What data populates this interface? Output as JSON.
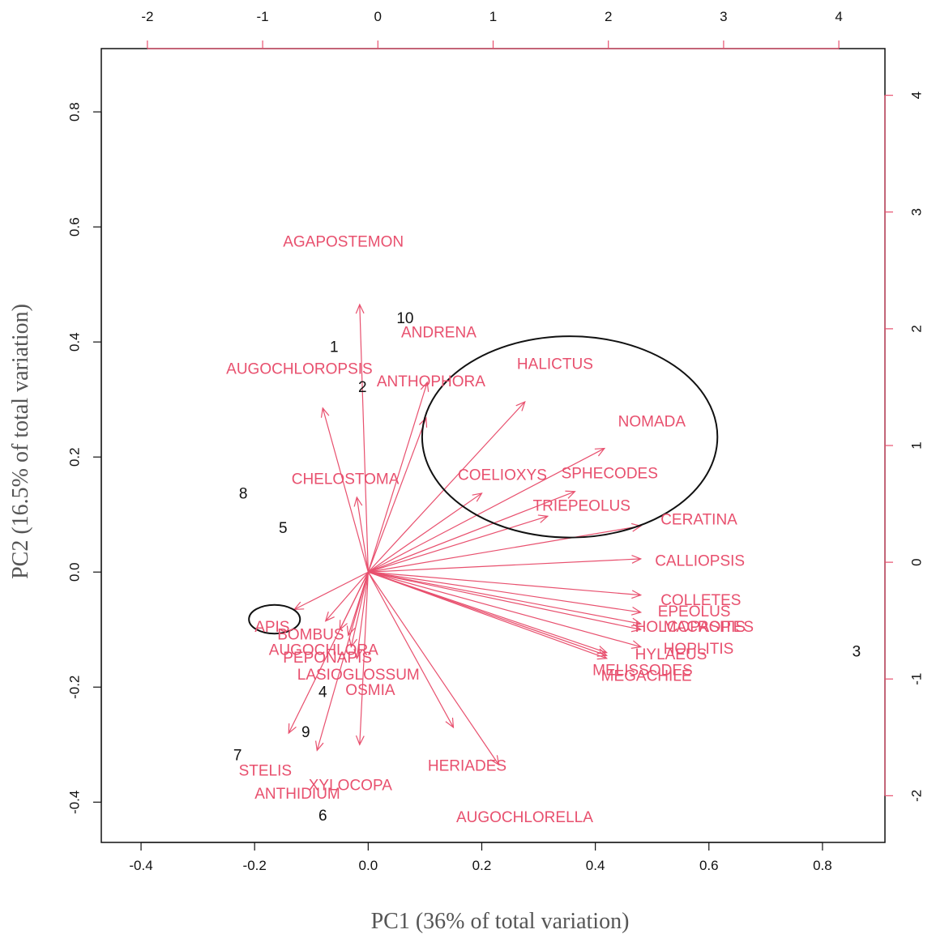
{
  "chart_data": {
    "type": "scatter",
    "title": "",
    "xlabel": "PC1 (36% of total variation)",
    "ylabel": "PC2 (16.5% of total variation)",
    "xlim": [
      -0.47,
      0.91
    ],
    "ylim": [
      -0.47,
      0.91
    ],
    "top_xlim": [
      -2.4,
      4.4
    ],
    "right_ylim": [
      -2.4,
      4.4
    ],
    "bottom_ticks": [
      "-0.4",
      "-0.2",
      "0.0",
      "0.2",
      "0.4",
      "0.6",
      "0.8"
    ],
    "left_ticks": [
      "-0.4",
      "-0.2",
      "0.0",
      "0.2",
      "0.4",
      "0.6",
      "0.8"
    ],
    "top_ticks": [
      "-2",
      "-1",
      "0",
      "1",
      "2",
      "3",
      "4"
    ],
    "right_ticks": [
      "-2",
      "-1",
      "0",
      "1",
      "2",
      "3",
      "4"
    ],
    "colors": {
      "variables": "#e8506e",
      "observations": "#111111",
      "frame": "#111111"
    },
    "observations": [
      {
        "label": "1",
        "x": -0.06,
        "y": 0.39
      },
      {
        "label": "2",
        "x": -0.01,
        "y": 0.32
      },
      {
        "label": "3",
        "x": 0.86,
        "y": -0.14
      },
      {
        "label": "4",
        "x": -0.08,
        "y": -0.21
      },
      {
        "label": "5",
        "x": -0.15,
        "y": 0.075
      },
      {
        "label": "6",
        "x": -0.08,
        "y": -0.425
      },
      {
        "label": "7",
        "x": -0.23,
        "y": -0.32
      },
      {
        "label": "8",
        "x": -0.22,
        "y": 0.135
      },
      {
        "label": "9",
        "x": -0.11,
        "y": -0.28
      },
      {
        "label": "10",
        "x": 0.065,
        "y": 0.44
      }
    ],
    "loadings": [
      {
        "name": "AGAPOSTEMON",
        "x": -0.015,
        "y": 0.465,
        "lx": -0.15,
        "ly": 0.573
      },
      {
        "name": "ANDRENA",
        "x": 0.104,
        "y": 0.33,
        "lx": 0.058,
        "ly": 0.415
      },
      {
        "name": "AUGOCHLOROPSIS",
        "x": -0.08,
        "y": 0.285,
        "lx": -0.25,
        "ly": 0.352
      },
      {
        "name": "ANTHOPHORA",
        "x": 0.102,
        "y": 0.268,
        "lx": 0.015,
        "ly": 0.33
      },
      {
        "name": "HALICTUS",
        "x": 0.276,
        "y": 0.296,
        "lx": 0.262,
        "ly": 0.36
      },
      {
        "name": "NOMADA",
        "x": 0.416,
        "y": 0.215,
        "lx": 0.44,
        "ly": 0.26
      },
      {
        "name": "COELIOXYS",
        "x": 0.2,
        "y": 0.137,
        "lx": 0.158,
        "ly": 0.167
      },
      {
        "name": "SPHECODES",
        "x": 0.364,
        "y": 0.14,
        "lx": 0.34,
        "ly": 0.17
      },
      {
        "name": "CHELOSTOMA",
        "x": -0.02,
        "y": 0.13,
        "lx": -0.135,
        "ly": 0.16
      },
      {
        "name": "TRIEPEOLUS",
        "x": 0.316,
        "y": 0.097,
        "lx": 0.29,
        "ly": 0.114
      },
      {
        "name": "CERATINA",
        "x": 0.48,
        "y": 0.08,
        "lx": 0.515,
        "ly": 0.09
      },
      {
        "name": "CALLIOPSIS",
        "x": 0.48,
        "y": 0.023,
        "lx": 0.505,
        "ly": 0.018
      },
      {
        "name": "COLLETES",
        "x": 0.48,
        "y": -0.04,
        "lx": 0.515,
        "ly": -0.05
      },
      {
        "name": "EPEOLUS",
        "x": 0.48,
        "y": -0.07,
        "lx": 0.51,
        "ly": -0.07
      },
      {
        "name": "HOLCOPASITES",
        "x": 0.48,
        "y": -0.09,
        "lx": 0.47,
        "ly": -0.097
      },
      {
        "name": "MACROPIS",
        "x": 0.48,
        "y": -0.1,
        "lx": 0.52,
        "ly": -0.097
      },
      {
        "name": "HOPLITIS",
        "x": 0.48,
        "y": -0.13,
        "lx": 0.52,
        "ly": -0.135
      },
      {
        "name": "HYLAEUS",
        "x": 0.42,
        "y": -0.14,
        "lx": 0.47,
        "ly": -0.145
      },
      {
        "name": "MELISSODES",
        "x": 0.42,
        "y": -0.145,
        "lx": 0.395,
        "ly": -0.172
      },
      {
        "name": "MEGACHILE",
        "x": 0.42,
        "y": -0.15,
        "lx": 0.41,
        "ly": -0.182
      },
      {
        "name": "APIS",
        "x": -0.13,
        "y": -0.065,
        "lx": -0.2,
        "ly": -0.097
      },
      {
        "name": "BOMBUS",
        "x": -0.075,
        "y": -0.085,
        "lx": -0.16,
        "ly": -0.11
      },
      {
        "name": "AUGOCHLORA",
        "x": -0.05,
        "y": -0.1,
        "lx": -0.175,
        "ly": -0.137
      },
      {
        "name": "PEPONAPIS",
        "x": -0.035,
        "y": -0.11,
        "lx": -0.15,
        "ly": -0.15
      },
      {
        "name": "LASIOGLOSSUM",
        "x": -0.03,
        "y": -0.13,
        "lx": -0.125,
        "ly": -0.18
      },
      {
        "name": "OSMIA",
        "x": -0.02,
        "y": -0.15,
        "lx": -0.04,
        "ly": -0.207
      },
      {
        "name": "HERIADES",
        "x": 0.15,
        "y": -0.27,
        "lx": 0.105,
        "ly": -0.338
      },
      {
        "name": "XYLOCOPA",
        "x": -0.09,
        "y": -0.31,
        "lx": -0.105,
        "ly": -0.372
      },
      {
        "name": "STELIS",
        "x": -0.14,
        "y": -0.28,
        "lx": -0.228,
        "ly": -0.347
      },
      {
        "name": "ANTHIDIUM",
        "x": -0.015,
        "y": -0.3,
        "lx": -0.2,
        "ly": -0.387
      },
      {
        "name": "AUGOCHLORELLA",
        "x": 0.23,
        "y": -0.335,
        "lx": 0.155,
        "ly": -0.428
      }
    ],
    "annotations": [
      {
        "type": "ellipse",
        "cx": 0.355,
        "cy": 0.235,
        "rx": 0.26,
        "ry": 0.175
      },
      {
        "type": "ellipse",
        "cx": -0.165,
        "cy": -0.082,
        "rx": 0.045,
        "ry": 0.025
      }
    ]
  }
}
